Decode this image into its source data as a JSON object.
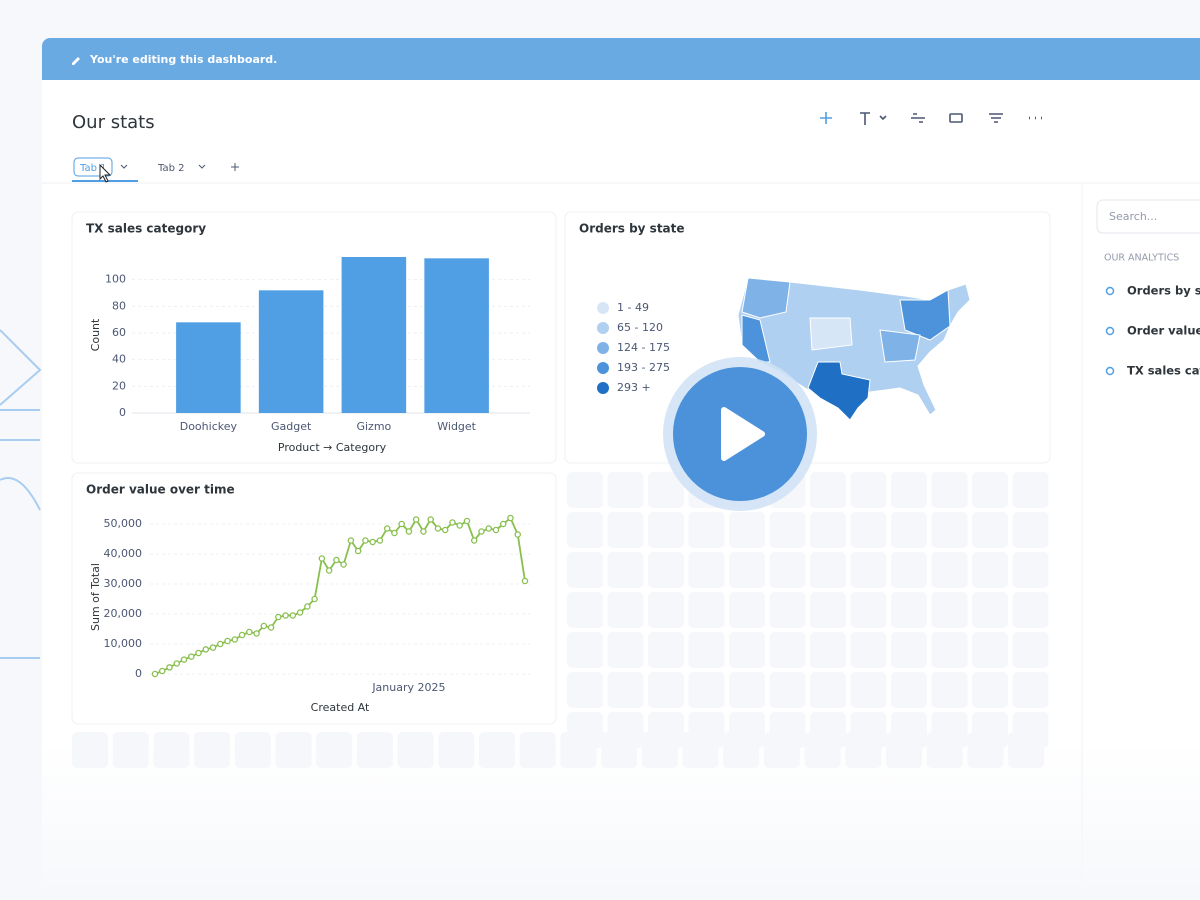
{
  "banner": "You're editing this dashboard.",
  "title": "Our stats",
  "tabs": [
    "Tab 1",
    "Tab 2"
  ],
  "sidebar": {
    "search_placeholder": "Search...",
    "section": "OUR ANALYTICS",
    "items": [
      "Orders by state",
      "Order value over time",
      "TX sales category"
    ]
  },
  "chart_data": [
    {
      "type": "bar",
      "title": "TX sales category",
      "categories": [
        "Doohickey",
        "Gadget",
        "Gizmo",
        "Widget"
      ],
      "values": [
        68,
        92,
        117,
        116
      ],
      "color": "#509ee3",
      "ylim": [
        0,
        120
      ],
      "yticks": [
        0,
        20,
        40,
        60,
        80,
        100
      ],
      "x_label": "Product → Category",
      "y_label": "Count",
      "grid": true
    },
    {
      "type": "map",
      "title": "Orders by state",
      "legend": [
        {
          "label": "1 - 49",
          "color": "#d6e6f7"
        },
        {
          "label": "65 - 120",
          "color": "#afd0f0"
        },
        {
          "label": "124 - 175",
          "color": "#7fb3e8"
        },
        {
          "label": "193 - 275",
          "color": "#4d93dc"
        },
        {
          "label": "293 +",
          "color": "#1f6fc4"
        }
      ]
    },
    {
      "type": "line",
      "title": "Order value over time",
      "categories": [
        null,
        null,
        null,
        null,
        null,
        null,
        null,
        null,
        null,
        null,
        null,
        null,
        null,
        null,
        null,
        null,
        null,
        null,
        null,
        null,
        null,
        null,
        null,
        null,
        null,
        null,
        null,
        null,
        null,
        null,
        null,
        null,
        null,
        null,
        null,
        "January 2025",
        null,
        null,
        null,
        null,
        null,
        null,
        null,
        null,
        null,
        null,
        null,
        null,
        null,
        null,
        null,
        null
      ],
      "values": [
        0,
        1000,
        2200,
        3500,
        4800,
        5800,
        7000,
        8200,
        8800,
        10000,
        11000,
        11500,
        13000,
        14000,
        13500,
        16000,
        15500,
        19000,
        19500,
        19500,
        20500,
        22500,
        25000,
        38500,
        34500,
        38000,
        36500,
        44500,
        41000,
        44500,
        44000,
        44500,
        48500,
        47000,
        50000,
        47500,
        51500,
        47500,
        51500,
        48500,
        48000,
        50500,
        49500,
        51000,
        44500,
        47500,
        48500,
        48000,
        50000,
        52000,
        46500,
        31000
      ],
      "color": "#88bf4d",
      "ylim": [
        0,
        53000
      ],
      "yticks": [
        0,
        {
          "value": 10000,
          "label": "10,000"
        },
        {
          "value": 20000,
          "label": "20,000"
        },
        {
          "value": 30000,
          "label": "30,000"
        },
        {
          "value": 40000,
          "label": "40,000"
        },
        {
          "value": 50000,
          "label": "50,000"
        }
      ],
      "x_label": "Created At",
      "y_label": "Sum of Total",
      "grid": true
    }
  ]
}
